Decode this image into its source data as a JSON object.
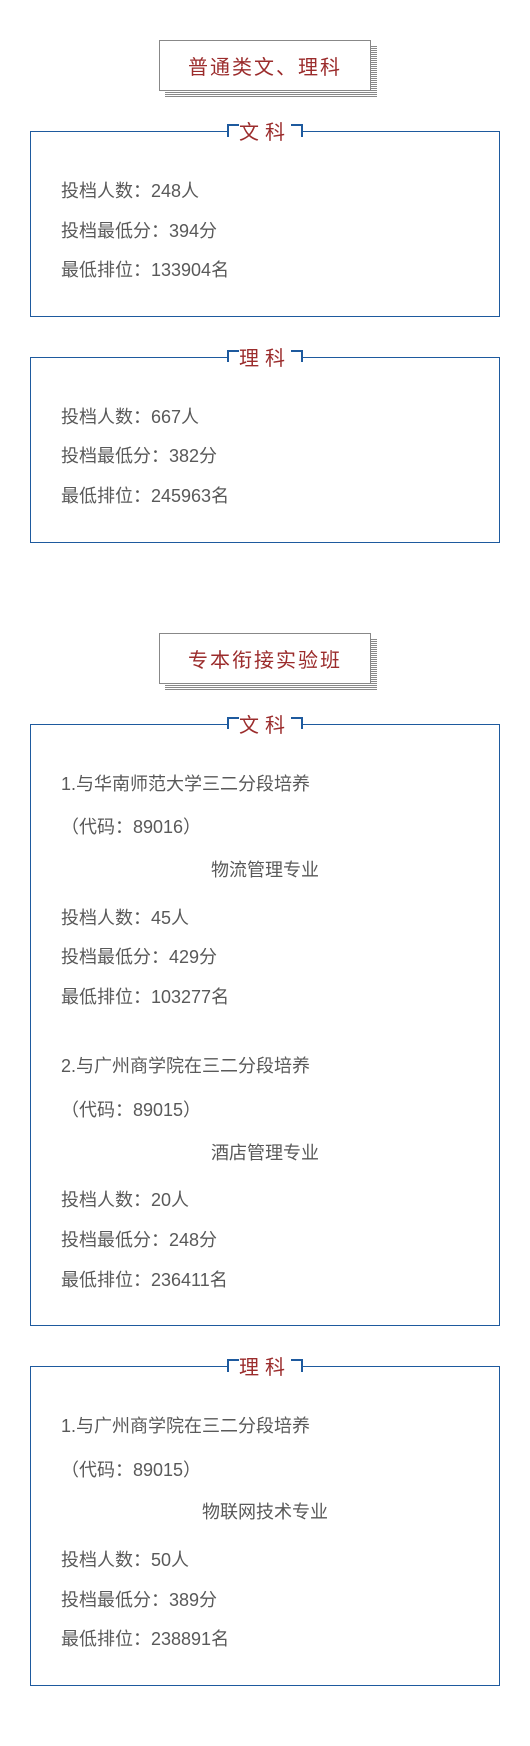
{
  "colors": {
    "border_blue": "#1e5a9e",
    "accent_red": "#9b2c2c",
    "text_gray": "#595959",
    "background": "#ffffff"
  },
  "section1": {
    "title": "普通类文、理科",
    "wenke": {
      "label": "文科",
      "row1": "投档人数：248人",
      "row2": "投档最低分：394分",
      "row3": "最低排位：133904名"
    },
    "like": {
      "label": "理科",
      "row1": "投档人数：667人",
      "row2": "投档最低分：382分",
      "row3": "最低排位：245963名"
    }
  },
  "section2": {
    "title": "专本衔接实验班",
    "wenke": {
      "label": "文科",
      "programs": [
        {
          "title": "1.与华南师范大学三二分段培养",
          "code": "（代码：89016）",
          "major": "物流管理专业",
          "row1": "投档人数：45人",
          "row2": "投档最低分：429分",
          "row3": "最低排位：103277名"
        },
        {
          "title": "2.与广州商学院在三二分段培养",
          "code": "（代码：89015）",
          "major": "酒店管理专业",
          "row1": "投档人数：20人",
          "row2": "投档最低分：248分",
          "row3": "最低排位：236411名"
        }
      ]
    },
    "like": {
      "label": "理科",
      "programs": [
        {
          "title": "1.与广州商学院在三二分段培养",
          "code": "（代码：89015）",
          "major": "物联网技术专业",
          "row1": "投档人数：50人",
          "row2": "投档最低分：389分",
          "row3": "最低排位：238891名"
        }
      ]
    }
  }
}
